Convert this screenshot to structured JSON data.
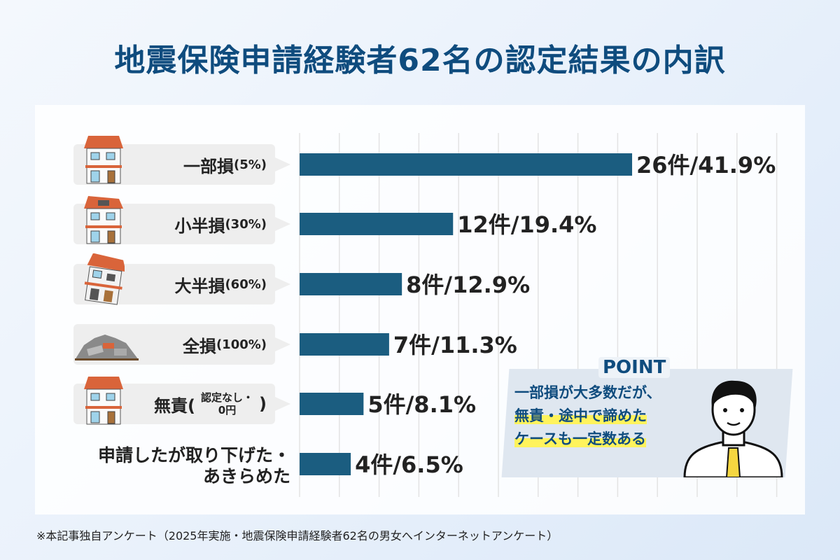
{
  "title": "地震保険申請経験者62名の認定結果の内訳",
  "chart_data": {
    "type": "bar",
    "orientation": "horizontal",
    "categories": [
      "一部損(5%)",
      "小半損(30%)",
      "大半損(60%)",
      "全損(100%)",
      "無責(認定なし・0円)",
      "申請したが取り下げた・あきらめた"
    ],
    "values": [
      26,
      12,
      8,
      7,
      5,
      4
    ],
    "percentages": [
      41.9,
      19.4,
      12.9,
      11.3,
      8.1,
      6.5
    ],
    "data_labels": [
      "26件/41.9%",
      "12件/19.4%",
      "8件/12.9%",
      "7件/11.3%",
      "5件/8.1%",
      "4件/6.5%"
    ],
    "bar_color": "#1b5d80",
    "grid": true
  },
  "labels": [
    {
      "main": "一部損",
      "sub": "(5%)",
      "icon": "house-partial-damage-icon"
    },
    {
      "main": "小半損",
      "sub": "(30%)",
      "icon": "house-small-half-damage-icon"
    },
    {
      "main": "大半損",
      "sub": "(60%)",
      "icon": "house-large-half-damage-icon"
    },
    {
      "main": "全損",
      "sub": "(100%)",
      "icon": "rubble-total-loss-icon"
    },
    {
      "main": "無責(",
      "sub1": "認定なし・",
      "sub2": "0円",
      "close": ")",
      "icon": "house-intact-icon"
    },
    {
      "main1": "申請したが取り下げた・",
      "main2": "あきらめた"
    }
  ],
  "point": {
    "title": "POINT",
    "line1": "一部損が大多数だが、",
    "line2": "無責・途中で諦めた",
    "line3": "ケースも一定数ある",
    "highlight_color": "#fff35c",
    "icon": "businessman-icon"
  },
  "footer": "※本記事独自アンケート（2025年実施・地震保険申請経験者62名の男女へインターネットアンケート）"
}
